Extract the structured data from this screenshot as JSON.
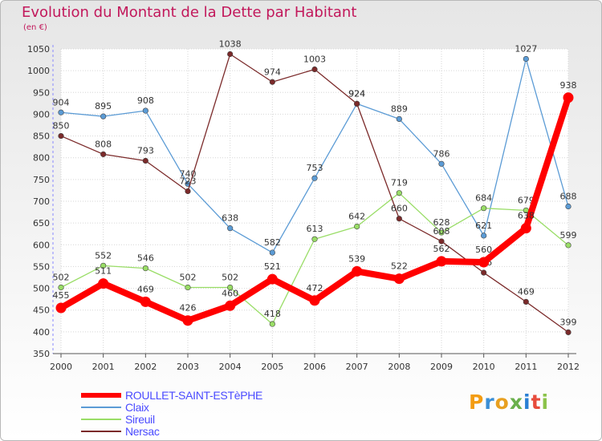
{
  "chart_data": {
    "type": "line",
    "title": "Evolution du Montant de la Dette par Habitant",
    "subtitle": "(en €)",
    "x": [
      "2000",
      "2001",
      "2002",
      "2003",
      "2004",
      "2005",
      "2006",
      "2007",
      "2008",
      "2009",
      "2010",
      "2011",
      "2012"
    ],
    "ylim": [
      350,
      1050
    ],
    "yticks": [
      350,
      400,
      450,
      500,
      550,
      600,
      650,
      700,
      750,
      800,
      850,
      900,
      950,
      1000,
      1050
    ],
    "grid": true,
    "series": [
      {
        "name": "ROULLET-SAINT-ESTèPHE",
        "color": "#ff0000",
        "bold": true,
        "values": [
          455,
          511,
          469,
          426,
          460,
          521,
          472,
          539,
          522,
          562,
          560,
          638,
          938
        ]
      },
      {
        "name": "Claix",
        "color": "#5b9bd5",
        "bold": false,
        "values": [
          904,
          895,
          908,
          740,
          638,
          582,
          753,
          924,
          889,
          786,
          621,
          1027,
          688
        ]
      },
      {
        "name": "Sireuil",
        "color": "#99dd66",
        "bold": false,
        "values": [
          502,
          552,
          546,
          502,
          502,
          418,
          613,
          642,
          719,
          628,
          684,
          679,
          599
        ]
      },
      {
        "name": "Nersac",
        "color": "#7b2a2a",
        "bold": false,
        "values": [
          850,
          808,
          793,
          723,
          1038,
          974,
          1003,
          924,
          660,
          608,
          536,
          469,
          399
        ]
      }
    ],
    "legend_position": "bottom-left"
  },
  "legend": [
    {
      "label": "ROULLET-SAINT-ESTèPHE",
      "color": "#ff0000"
    },
    {
      "label": "Claix",
      "color": "#5b9bd5"
    },
    {
      "label": "Sireuil",
      "color": "#99dd66"
    },
    {
      "label": "Nersac",
      "color": "#7b2a2a"
    }
  ],
  "logo": {
    "letters": [
      "P",
      "r",
      "o",
      "x",
      "i",
      "t",
      "i"
    ]
  }
}
